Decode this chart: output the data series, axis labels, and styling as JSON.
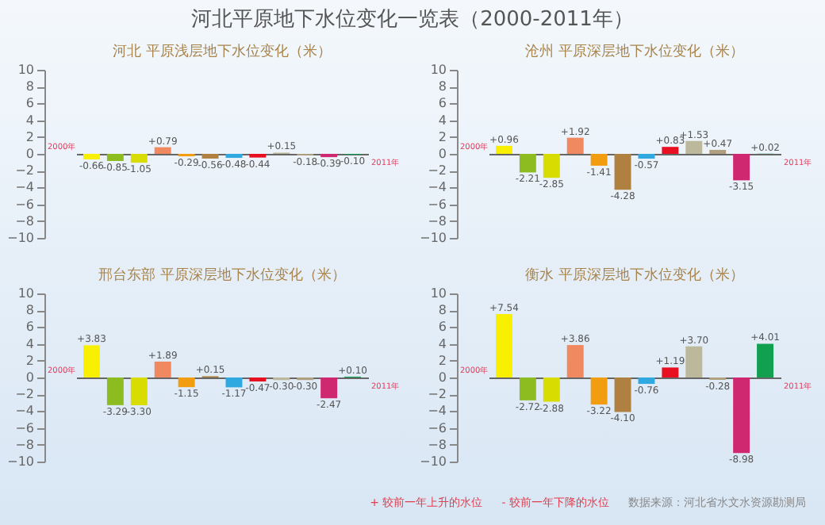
{
  "chart_data": [
    {
      "type": "other",
      "title": "河北平原地下水位变化一览表（2000-2011年）"
    },
    {
      "type": "bar",
      "title": "河北  平原浅层地下水位变化（米）",
      "categories": [
        null,
        null,
        null,
        null,
        null,
        null,
        null,
        null,
        null,
        null,
        null,
        null
      ],
      "values": [
        -0.66,
        -0.85,
        -1.05,
        0.79,
        -0.29,
        -0.56,
        -0.48,
        -0.44,
        0.15,
        -0.18,
        -0.39,
        -0.1
      ],
      "value_labels": [
        "-0.66",
        "-0.85",
        "-1.05",
        "+0.79",
        "-0.29",
        "-0.56",
        "-0.48",
        "-0.44",
        "+0.15",
        "-0.18",
        "-0.39",
        "-0.10"
      ],
      "colors": [
        "#f8f000",
        "#8cbc20",
        "#d8dc00",
        "#f08860",
        "#f29c10",
        "#b08040",
        "#30a8e0",
        "#e81020",
        "#bcb89c",
        "#b0a080",
        "#d02870",
        "#10a050"
      ],
      "ylim": [
        -10,
        10
      ],
      "yticks": [
        -10,
        -8,
        -6,
        -4,
        -2,
        0,
        2,
        4,
        6,
        8,
        10
      ],
      "annotations": [
        "2000年",
        "2011年"
      ]
    },
    {
      "type": "bar",
      "title": "沧州  平原深层地下水位变化（米）",
      "categories": [
        null,
        null,
        null,
        null,
        null,
        null,
        null,
        null,
        null,
        null,
        null,
        null
      ],
      "values": [
        0.96,
        -2.21,
        -2.85,
        1.92,
        -1.41,
        -4.28,
        -0.57,
        0.83,
        1.53,
        0.47,
        -3.15,
        0.02
      ],
      "value_labels": [
        "+0.96",
        "-2.21",
        "-2.85",
        "+1.92",
        "-1.41",
        "-4.28",
        "-0.57",
        "+0.83",
        "+1.53",
        "+0.47",
        "-3.15",
        "+0.02"
      ],
      "colors": [
        "#f8f000",
        "#8cbc20",
        "#d8dc00",
        "#f08860",
        "#f29c10",
        "#b08040",
        "#30a8e0",
        "#e81020",
        "#bcb89c",
        "#b0a080",
        "#d02870",
        "#10a050"
      ],
      "ylim": [
        -10,
        10
      ],
      "yticks": [
        -10,
        -8,
        -6,
        -4,
        -2,
        0,
        2,
        4,
        6,
        8,
        10
      ],
      "annotations": [
        "2000年",
        "2011年"
      ]
    },
    {
      "type": "bar",
      "title": "邢台东部  平原深层地下水位变化（米）",
      "categories": [
        null,
        null,
        null,
        null,
        null,
        null,
        null,
        null,
        null,
        null,
        null,
        null
      ],
      "values": [
        3.83,
        -3.29,
        -3.3,
        1.89,
        -1.15,
        0.15,
        -1.17,
        -0.47,
        -0.3,
        -0.3,
        -2.47,
        0.1
      ],
      "value_labels": [
        "+3.83",
        "-3.29",
        "-3.30",
        "+1.89",
        "-1.15",
        "+0.15",
        "-1.17",
        "-0.47",
        "-0.30",
        "-0.30",
        "-2.47",
        "+0.10"
      ],
      "colors": [
        "#f8f000",
        "#8cbc20",
        "#d8dc00",
        "#f08860",
        "#f29c10",
        "#b08040",
        "#30a8e0",
        "#e81020",
        "#bcb89c",
        "#b0a080",
        "#d02870",
        "#10a050"
      ],
      "ylim": [
        -10,
        10
      ],
      "yticks": [
        -10,
        -8,
        -6,
        -4,
        -2,
        0,
        2,
        4,
        6,
        8,
        10
      ],
      "annotations": [
        "2000年",
        "2011年"
      ]
    },
    {
      "type": "bar",
      "title": "衡水  平原深层地下水位变化（米）",
      "categories": [
        null,
        null,
        null,
        null,
        null,
        null,
        null,
        null,
        null,
        null,
        null,
        null
      ],
      "values": [
        7.54,
        -2.72,
        -2.88,
        3.86,
        -3.22,
        -4.1,
        -0.76,
        1.19,
        3.7,
        -0.28,
        -8.98,
        4.01
      ],
      "value_labels": [
        "+7.54",
        "-2.72",
        "-2.88",
        "+3.86",
        "-3.22",
        "-4.10",
        "-0.76",
        "+1.19",
        "+3.70",
        "-0.28",
        "-8.98",
        "+4.01"
      ],
      "colors": [
        "#f8f000",
        "#8cbc20",
        "#d8dc00",
        "#f08860",
        "#f29c10",
        "#b08040",
        "#30a8e0",
        "#e81020",
        "#bcb89c",
        "#b0a080",
        "#d02870",
        "#10a050"
      ],
      "ylim": [
        -10,
        10
      ],
      "yticks": [
        -10,
        -8,
        -6,
        -4,
        -2,
        0,
        2,
        4,
        6,
        8,
        10
      ],
      "annotations": [
        "2000年",
        "2011年"
      ]
    },
    {
      "type": "other",
      "annotations": [
        "+ 较前一年上升的水位",
        "- 较前一年下降的水位",
        "数据来源：河北省水文水资源勘测局"
      ]
    }
  ]
}
